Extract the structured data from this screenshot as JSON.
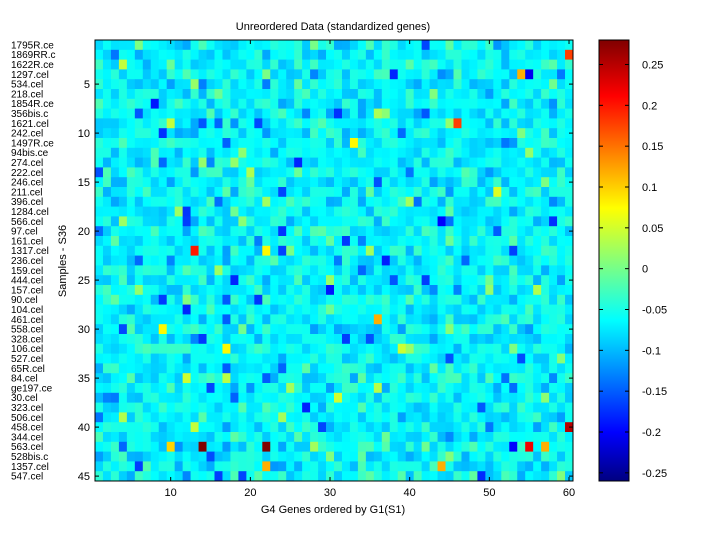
{
  "chart_data": {
    "type": "heatmap",
    "title": "Unreordered Data (standardized genes)",
    "xlabel": "G4 Genes ordered by G1(S1)",
    "ylabel": "Samples - S36",
    "x_range": [
      0.5,
      60.5
    ],
    "y_range": [
      0.5,
      45.5
    ],
    "x_ticks": [
      10,
      20,
      30,
      40,
      50,
      60
    ],
    "y_ticks": [
      5,
      10,
      15,
      20,
      25,
      30,
      35,
      40,
      45
    ],
    "row_labels": [
      "1795R.ce",
      "1869RR.c",
      "1622R.ce",
      "1297.cel",
      "534.cel",
      "218.cel",
      "1854R.ce",
      "356bis.c",
      "1621.cel",
      "242.cel",
      "1497R.ce",
      "94bis.ce",
      "274.cel",
      "222.cel",
      "246.cel",
      "211.cel",
      "396.cel",
      "1284.cel",
      "566.cel",
      "97.cel",
      "161.cel",
      "1317.cel",
      "236.cel",
      "159.cel",
      "444.cel",
      "157.cel",
      "90.cel",
      "104.cel",
      "461.cel",
      "558.cel",
      "328.cel",
      "106.cel",
      "527.cel",
      "65R.cel",
      "84.cel",
      "ge197.ce",
      "30.cel",
      "323.cel",
      "506.cel",
      "458.cel",
      "344.cel",
      "563.cel",
      "528bis.c",
      "1357.cel",
      "547.cel"
    ],
    "colorbar": {
      "min": -0.26,
      "max": 0.28,
      "ticks": [
        0.25,
        0.2,
        0.15,
        0.1,
        0.05,
        0,
        -0.05,
        -0.1,
        -0.15,
        -0.2,
        -0.25
      ],
      "tick_labels": [
        "0.25",
        "0.2",
        "0.15",
        "0.1",
        "0.05",
        "0",
        "-0.05",
        "-0.1",
        "-0.15",
        "-0.2",
        "-0.25"
      ],
      "colormap": "jet"
    },
    "value_distribution": {
      "rows": 45,
      "columns": 60,
      "typical_range": [
        -0.12,
        0.0
      ]
    },
    "notable_cells": [
      {
        "row": 2,
        "col": 60,
        "value": 0.18
      },
      {
        "row": 4,
        "col": 54,
        "value": 0.12
      },
      {
        "row": 4,
        "col": 55,
        "value": -0.2
      },
      {
        "row": 9,
        "col": 46,
        "value": 0.18
      },
      {
        "row": 9,
        "col": 45,
        "value": 0.02
      },
      {
        "row": 11,
        "col": 33,
        "value": 0.08
      },
      {
        "row": 22,
        "col": 13,
        "value": 0.2
      },
      {
        "row": 22,
        "col": 22,
        "value": 0.08
      },
      {
        "row": 29,
        "col": 36,
        "value": 0.12
      },
      {
        "row": 30,
        "col": 9,
        "value": 0.08
      },
      {
        "row": 32,
        "col": 17,
        "value": 0.08
      },
      {
        "row": 32,
        "col": 39,
        "value": 0.05
      },
      {
        "row": 40,
        "col": 60,
        "value": 0.25
      },
      {
        "row": 42,
        "col": 14,
        "value": 0.28
      },
      {
        "row": 42,
        "col": 22,
        "value": 0.28
      },
      {
        "row": 42,
        "col": 55,
        "value": 0.22
      },
      {
        "row": 42,
        "col": 57,
        "value": 0.12
      },
      {
        "row": 42,
        "col": 10,
        "value": 0.1
      },
      {
        "row": 44,
        "col": 22,
        "value": 0.12
      },
      {
        "row": 44,
        "col": 44,
        "value": 0.12
      }
    ],
    "grid": false
  }
}
